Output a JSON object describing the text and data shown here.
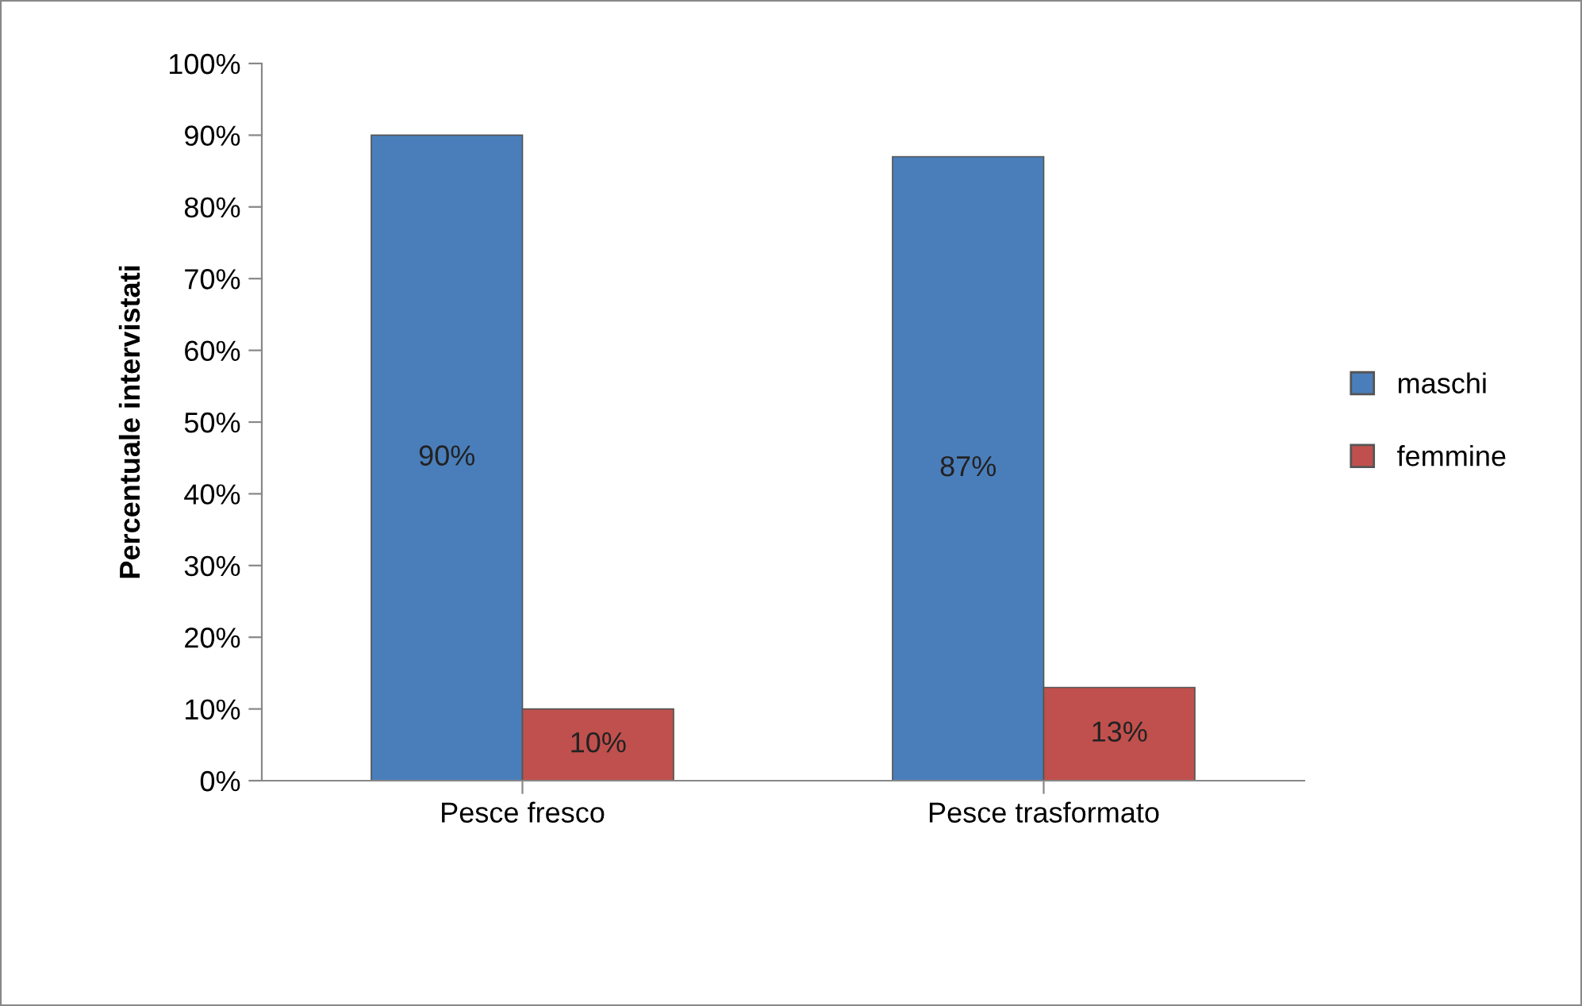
{
  "chart_data": {
    "type": "bar",
    "ylabel": "Percentuale intervistati",
    "categories": [
      "Pesce fresco",
      "Pesce trasformato"
    ],
    "series": [
      {
        "name": "maschi",
        "color": "#4a7ebb",
        "values": [
          90,
          87
        ]
      },
      {
        "name": "femmine",
        "color": "#c0504d",
        "values": [
          10,
          13
        ]
      }
    ],
    "ylim": [
      0,
      100
    ],
    "yticks": [
      {
        "value": 0,
        "label": "0%"
      },
      {
        "value": 10,
        "label": "10%"
      },
      {
        "value": 20,
        "label": "20%"
      },
      {
        "value": 30,
        "label": "30%"
      },
      {
        "value": 40,
        "label": "40%"
      },
      {
        "value": 50,
        "label": "50%"
      },
      {
        "value": 60,
        "label": "60%"
      },
      {
        "value": 70,
        "label": "70%"
      },
      {
        "value": 80,
        "label": "80%"
      },
      {
        "value": 90,
        "label": "90%"
      },
      {
        "value": 100,
        "label": "100%"
      }
    ],
    "value_labels": [
      [
        "90%",
        "87%"
      ],
      [
        "10%",
        "13%"
      ]
    ],
    "grid": false,
    "legend": "right"
  }
}
